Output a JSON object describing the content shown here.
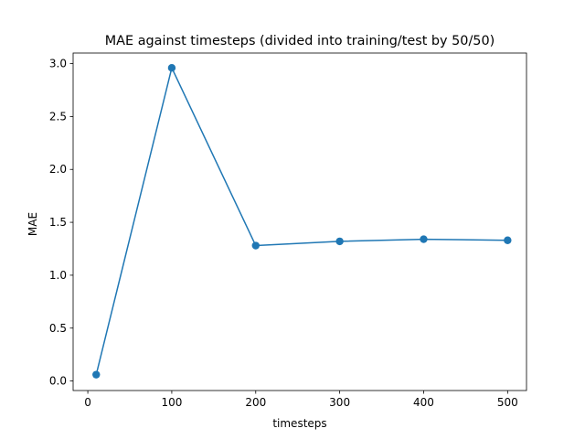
{
  "chart_data": {
    "type": "line",
    "title": "MAE against timesteps (divided into training/test by 50/50)",
    "xlabel": "timesteps",
    "ylabel": "MAE",
    "xlim": [
      -17.5,
      522.5
    ],
    "ylim": [
      -0.09,
      3.1
    ],
    "xticks": [
      0,
      100,
      200,
      300,
      400,
      500
    ],
    "xtick_labels": [
      "0",
      "100",
      "200",
      "300",
      "400",
      "500"
    ],
    "yticks": [
      0.0,
      0.5,
      1.0,
      1.5,
      2.0,
      2.5,
      3.0
    ],
    "ytick_labels": [
      "0.0",
      "0.5",
      "1.0",
      "1.5",
      "2.0",
      "2.5",
      "3.0"
    ],
    "grid": false,
    "series": [
      {
        "color": "#1f77b4",
        "marker": "circle",
        "x": [
          10,
          100,
          200,
          300,
          400,
          500
        ],
        "y": [
          0.06,
          2.96,
          1.28,
          1.32,
          1.34,
          1.33
        ]
      }
    ]
  }
}
